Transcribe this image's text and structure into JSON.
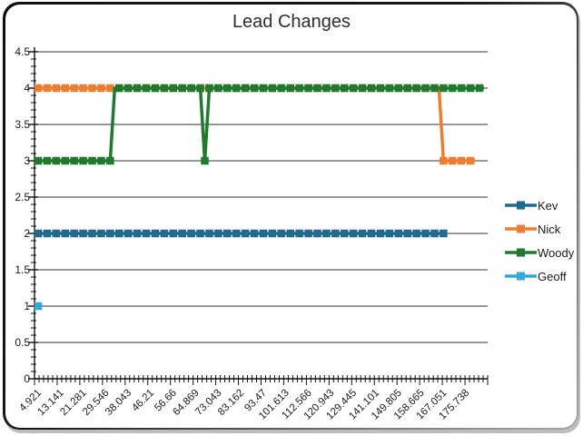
{
  "chart_data": {
    "type": "line",
    "title": "Lead Changes",
    "xlabel": "",
    "ylabel": "",
    "ylim": [
      0,
      4.5
    ],
    "y_tick_step": 0.5,
    "y_minor_step": 0.1,
    "y_tick_labels": [
      "0",
      "0.5",
      "1",
      "1.5",
      "2",
      "2.5",
      "3",
      "3.5",
      "4",
      "4.5"
    ],
    "grid": true,
    "legend_position": "right",
    "n_points": 100,
    "x_label_every": 5,
    "x_tick_labels": [
      "4.921",
      "13.141",
      "21.281",
      "29.546",
      "38.043",
      "46.21",
      "56.66",
      "64.869",
      "73.043",
      "83.162",
      "93.47",
      "101.613",
      "112.566",
      "120.943",
      "129.445",
      "141.101",
      "149.805",
      "158.665",
      "167.051",
      "175.738"
    ],
    "series": [
      {
        "name": "Kev",
        "color": "#21698E",
        "runs": [
          {
            "from": 0,
            "to": 90,
            "value": 2
          }
        ]
      },
      {
        "name": "Nick",
        "color": "#ED7D31",
        "runs": [
          {
            "from": 0,
            "to": 89,
            "value": 4
          },
          {
            "from": 90,
            "to": 97,
            "value": 3
          }
        ]
      },
      {
        "name": "Woody",
        "color": "#1F7A2E",
        "runs": [
          {
            "from": 0,
            "to": 16,
            "value": 3
          },
          {
            "from": 17,
            "to": 36,
            "value": 4
          },
          {
            "from": 37,
            "to": 37,
            "value": 3
          },
          {
            "from": 38,
            "to": 99,
            "value": 4
          }
        ]
      },
      {
        "name": "Geoff",
        "color": "#35A7DB",
        "runs": [
          {
            "from": 0,
            "to": 0,
            "value": 1
          }
        ]
      }
    ]
  }
}
